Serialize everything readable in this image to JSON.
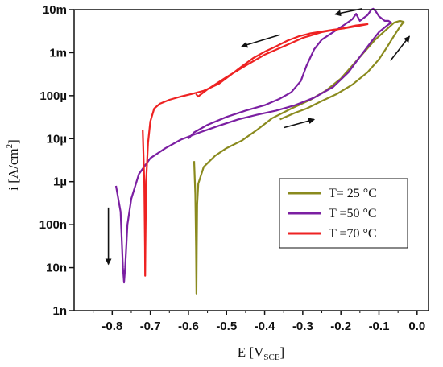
{
  "chart_data": {
    "type": "line",
    "xlabel": {
      "main": "E ",
      "bracket_open": "[V",
      "sub": "SCE",
      "bracket_close": "]"
    },
    "ylabel": {
      "main": "i [A/cm",
      "sup": "2",
      "close": "]"
    },
    "x_range": [
      -0.9,
      0.03
    ],
    "y_range_log10": [
      -9,
      -2
    ],
    "x_ticks": [
      {
        "value": -0.8,
        "label": "-0.8"
      },
      {
        "value": -0.7,
        "label": "-0.7"
      },
      {
        "value": -0.6,
        "label": "-0.6"
      },
      {
        "value": -0.5,
        "label": "-0.5"
      },
      {
        "value": -0.4,
        "label": "-0.4"
      },
      {
        "value": -0.3,
        "label": "-0.3"
      },
      {
        "value": -0.2,
        "label": "-0.2"
      },
      {
        "value": -0.1,
        "label": "-0.1"
      },
      {
        "value": 0.0,
        "label": "0.0"
      }
    ],
    "y_ticks": [
      {
        "value": 1e-09,
        "label": "1n"
      },
      {
        "value": 1e-08,
        "label": "10n"
      },
      {
        "value": 1e-07,
        "label": "100n"
      },
      {
        "value": 1e-06,
        "label": "1µ"
      },
      {
        "value": 1e-05,
        "label": "10µ"
      },
      {
        "value": 0.0001,
        "label": "100µ"
      },
      {
        "value": 0.001,
        "label": "1m"
      },
      {
        "value": 0.01,
        "label": "10m"
      }
    ],
    "legend": {
      "placement": "center-right"
    },
    "series": [
      {
        "name": "T= 25 °C",
        "color": "#8a8a1e",
        "points": [
          [
            -0.585,
            3e-06
          ],
          [
            -0.582,
            5e-07
          ],
          [
            -0.58,
            3e-08
          ],
          [
            -0.579,
            2.5e-09
          ],
          [
            -0.578,
            3e-08
          ],
          [
            -0.577,
            3e-07
          ],
          [
            -0.574,
            9e-07
          ],
          [
            -0.56,
            2.2e-06
          ],
          [
            -0.53,
            4e-06
          ],
          [
            -0.5,
            6e-06
          ],
          [
            -0.46,
            9e-06
          ],
          [
            -0.42,
            1.6e-05
          ],
          [
            -0.38,
            3e-05
          ],
          [
            -0.33,
            5e-05
          ],
          [
            -0.28,
            8e-05
          ],
          [
            -0.24,
            0.00013
          ],
          [
            -0.2,
            0.00025
          ],
          [
            -0.17,
            0.0005
          ],
          [
            -0.14,
            0.001
          ],
          [
            -0.11,
            0.002
          ],
          [
            -0.08,
            0.0035
          ],
          [
            -0.06,
            0.005
          ],
          [
            -0.045,
            0.0055
          ],
          [
            -0.035,
            0.0052
          ],
          [
            -0.045,
            0.004
          ],
          [
            -0.06,
            0.0025
          ],
          [
            -0.08,
            0.0013
          ],
          [
            -0.1,
            0.0007
          ],
          [
            -0.13,
            0.00035
          ],
          [
            -0.17,
            0.00018
          ],
          [
            -0.21,
            0.00011
          ],
          [
            -0.25,
            7.5e-05
          ],
          [
            -0.29,
            5e-05
          ],
          [
            -0.32,
            4e-05
          ],
          [
            -0.345,
            3.2e-05
          ],
          [
            -0.36,
            2.8e-05
          ]
        ]
      },
      {
        "name": "T =50 °C",
        "color": "#7b1fa2",
        "points": [
          [
            -0.79,
            8e-07
          ],
          [
            -0.778,
            2e-07
          ],
          [
            -0.772,
            1e-08
          ],
          [
            -0.769,
            4.5e-09
          ],
          [
            -0.766,
            1e-08
          ],
          [
            -0.76,
            1e-07
          ],
          [
            -0.75,
            4e-07
          ],
          [
            -0.73,
            1.5e-06
          ],
          [
            -0.7,
            3.5e-06
          ],
          [
            -0.66,
            6e-06
          ],
          [
            -0.62,
            9.5e-06
          ],
          [
            -0.57,
            1.4e-05
          ],
          [
            -0.52,
            2e-05
          ],
          [
            -0.47,
            2.8e-05
          ],
          [
            -0.42,
            3.6e-05
          ],
          [
            -0.37,
            4.5e-05
          ],
          [
            -0.32,
            6e-05
          ],
          [
            -0.27,
            9e-05
          ],
          [
            -0.22,
            0.00016
          ],
          [
            -0.18,
            0.00035
          ],
          [
            -0.15,
            0.0008
          ],
          [
            -0.12,
            0.0018
          ],
          [
            -0.1,
            0.003
          ],
          [
            -0.08,
            0.0042
          ],
          [
            -0.068,
            0.005
          ],
          [
            -0.075,
            0.0055
          ],
          [
            -0.085,
            0.0055
          ],
          [
            -0.1,
            0.007
          ],
          [
            -0.108,
            0.009
          ],
          [
            -0.115,
            0.0105
          ],
          [
            -0.12,
            0.01
          ],
          [
            -0.13,
            0.0075
          ],
          [
            -0.15,
            0.0055
          ],
          [
            -0.16,
            0.008
          ],
          [
            -0.17,
            0.006
          ],
          [
            -0.19,
            0.0045
          ],
          [
            -0.22,
            0.003
          ],
          [
            -0.25,
            0.002
          ],
          [
            -0.27,
            0.0012
          ],
          [
            -0.29,
            0.0005
          ],
          [
            -0.305,
            0.00022
          ],
          [
            -0.33,
            0.00012
          ],
          [
            -0.36,
            8.5e-05
          ],
          [
            -0.4,
            6e-05
          ],
          [
            -0.45,
            4.5e-05
          ],
          [
            -0.5,
            3.2e-05
          ],
          [
            -0.55,
            2.1e-05
          ],
          [
            -0.585,
            1.4e-05
          ],
          [
            -0.6,
            1e-05
          ]
        ]
      },
      {
        "name": "T =70 °C",
        "color": "#ee2222",
        "points": [
          [
            -0.72,
            1.6e-05
          ],
          [
            -0.716,
            1e-06
          ],
          [
            -0.714,
            3e-08
          ],
          [
            -0.7135,
            6.5e-09
          ],
          [
            -0.713,
            3e-08
          ],
          [
            -0.711,
            1e-06
          ],
          [
            -0.706,
            8e-06
          ],
          [
            -0.7,
            2.5e-05
          ],
          [
            -0.69,
            5e-05
          ],
          [
            -0.675,
            6.5e-05
          ],
          [
            -0.65,
            8e-05
          ],
          [
            -0.62,
            9.5e-05
          ],
          [
            -0.59,
            0.00011
          ],
          [
            -0.56,
            0.00013
          ],
          [
            -0.52,
            0.00019
          ],
          [
            -0.49,
            0.0003
          ],
          [
            -0.46,
            0.00048
          ],
          [
            -0.43,
            0.00075
          ],
          [
            -0.4,
            0.00105
          ],
          [
            -0.37,
            0.0014
          ],
          [
            -0.34,
            0.0019
          ],
          [
            -0.31,
            0.0024
          ],
          [
            -0.28,
            0.0028
          ],
          [
            -0.25,
            0.0031
          ],
          [
            -0.22,
            0.0034
          ],
          [
            -0.19,
            0.0037
          ],
          [
            -0.16,
            0.0041
          ],
          [
            -0.13,
            0.0046
          ],
          [
            -0.16,
            0.0043
          ],
          [
            -0.2,
            0.0036
          ],
          [
            -0.25,
            0.003
          ],
          [
            -0.3,
            0.0022
          ],
          [
            -0.35,
            0.0014
          ],
          [
            -0.4,
            0.0009
          ],
          [
            -0.45,
            0.0005
          ],
          [
            -0.5,
            0.00027
          ],
          [
            -0.55,
            0.00014
          ],
          [
            -0.575,
            9.5e-05
          ],
          [
            -0.58,
            0.00011
          ]
        ]
      }
    ],
    "arrows": [
      {
        "from": [
          -0.145,
          0.0105
        ],
        "to": [
          -0.215,
          0.0078
        ]
      },
      {
        "from": [
          -0.36,
          0.0026
        ],
        "to": [
          -0.46,
          0.0014
        ]
      },
      {
        "from": [
          -0.07,
          0.00065
        ],
        "to": [
          -0.02,
          0.0024
        ]
      },
      {
        "from": [
          -0.35,
          1.8e-05
        ],
        "to": [
          -0.27,
          2.8e-05
        ]
      },
      {
        "from": [
          -0.81,
          2.5e-07
        ],
        "to": [
          -0.81,
          1.2e-08
        ]
      }
    ]
  }
}
